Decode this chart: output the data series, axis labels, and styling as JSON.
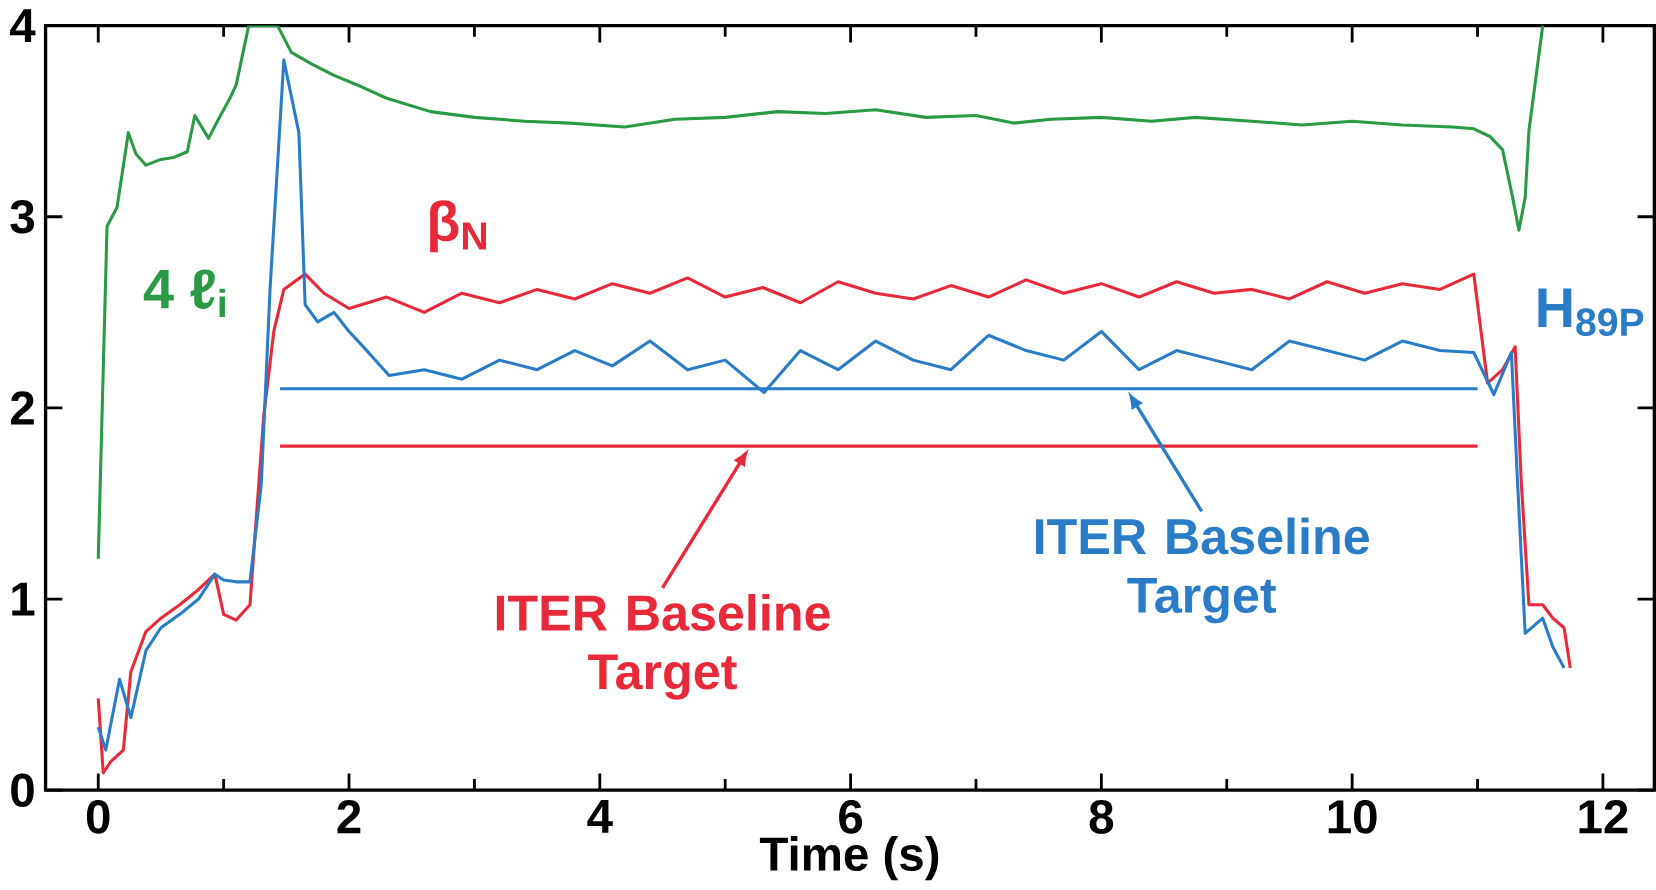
{
  "chart_data": {
    "type": "line",
    "xlabel": "Time (s)",
    "xlim": [
      -0.42,
      12.41
    ],
    "ylim": [
      0,
      4
    ],
    "xticks": [
      0,
      2,
      4,
      6,
      8,
      10,
      12
    ],
    "yticks": [
      0,
      1,
      2,
      3,
      4
    ],
    "grid": false,
    "legend": false,
    "marker": "none",
    "line_style": "solid",
    "series": [
      {
        "name": "4 ℓ$_{i}$",
        "color": "#2a9a45",
        "x": [
          0,
          0.07,
          0.15,
          0.24,
          0.3,
          0.38,
          0.5,
          0.6,
          0.71,
          0.77,
          0.88,
          0.95,
          1.05,
          1.1,
          1.2,
          1.3,
          1.43,
          1.54,
          1.7,
          1.88,
          2.1,
          2.3,
          2.65,
          3.0,
          3.4,
          3.76,
          4.2,
          4.6,
          5.0,
          5.42,
          5.8,
          6.2,
          6.6,
          7.0,
          7.3,
          7.6,
          8.0,
          8.4,
          8.75,
          9.2,
          9.6,
          10.0,
          10.4,
          10.8,
          10.97,
          11.1,
          11.2,
          11.28,
          11.33,
          11.38,
          11.41,
          11.52
        ],
        "values": [
          1.21,
          2.95,
          3.05,
          3.44,
          3.33,
          3.27,
          3.3,
          3.31,
          3.34,
          3.53,
          3.41,
          3.5,
          3.62,
          3.69,
          4.0,
          4.0,
          4.0,
          3.86,
          3.8,
          3.74,
          3.68,
          3.62,
          3.55,
          3.52,
          3.5,
          3.49,
          3.47,
          3.51,
          3.52,
          3.55,
          3.54,
          3.56,
          3.52,
          3.53,
          3.49,
          3.51,
          3.52,
          3.5,
          3.52,
          3.5,
          3.48,
          3.5,
          3.48,
          3.47,
          3.46,
          3.42,
          3.35,
          3.1,
          2.93,
          3.1,
          3.45,
          4.0
        ]
      },
      {
        "name": "β$_{N}$",
        "color": "#e8293a",
        "x": [
          0,
          0.04,
          0.1,
          0.2,
          0.26,
          0.38,
          0.5,
          0.65,
          0.8,
          0.93,
          1.0,
          1.1,
          1.21,
          1.32,
          1.4,
          1.48,
          1.65,
          1.8,
          2.0,
          2.1,
          2.3,
          2.6,
          2.9,
          3.2,
          3.5,
          3.8,
          4.1,
          4.4,
          4.7,
          5.0,
          5.3,
          5.6,
          5.9,
          6.2,
          6.5,
          6.8,
          7.1,
          7.4,
          7.7,
          8.0,
          8.3,
          8.6,
          8.9,
          9.2,
          9.5,
          9.8,
          10.1,
          10.4,
          10.7,
          10.97,
          11.08,
          11.2,
          11.3,
          11.35,
          11.41,
          11.52,
          11.6,
          11.69,
          11.74
        ],
        "values": [
          0.48,
          0.09,
          0.15,
          0.21,
          0.62,
          0.83,
          0.9,
          0.97,
          1.05,
          1.13,
          0.92,
          0.89,
          0.97,
          1.96,
          2.4,
          2.62,
          2.7,
          2.6,
          2.52,
          2.54,
          2.58,
          2.5,
          2.6,
          2.55,
          2.62,
          2.57,
          2.65,
          2.6,
          2.68,
          2.58,
          2.63,
          2.55,
          2.66,
          2.6,
          2.57,
          2.64,
          2.58,
          2.67,
          2.6,
          2.65,
          2.58,
          2.66,
          2.6,
          2.62,
          2.57,
          2.66,
          2.6,
          2.65,
          2.62,
          2.7,
          2.13,
          2.2,
          2.32,
          1.6,
          0.97,
          0.97,
          0.9,
          0.85,
          0.64
        ]
      },
      {
        "name": "H$_{89P}$",
        "color": "#2a7cc7",
        "x": [
          0,
          0.06,
          0.17,
          0.26,
          0.38,
          0.5,
          0.65,
          0.8,
          0.93,
          1.0,
          1.1,
          1.21,
          1.3,
          1.37,
          1.48,
          1.6,
          1.65,
          1.75,
          1.88,
          2.0,
          2.1,
          2.32,
          2.6,
          2.9,
          3.2,
          3.5,
          3.8,
          4.1,
          4.4,
          4.7,
          5.0,
          5.31,
          5.6,
          5.9,
          6.2,
          6.5,
          6.8,
          7.1,
          7.4,
          7.7,
          8.0,
          8.3,
          8.6,
          8.9,
          9.2,
          9.5,
          9.8,
          10.1,
          10.4,
          10.7,
          10.97,
          11.13,
          11.27,
          11.32,
          11.38,
          11.52,
          11.6,
          11.69
        ],
        "values": [
          0.33,
          0.21,
          0.58,
          0.38,
          0.73,
          0.85,
          0.92,
          1.0,
          1.13,
          1.1,
          1.09,
          1.09,
          1.6,
          2.62,
          3.82,
          3.44,
          2.54,
          2.45,
          2.5,
          2.4,
          2.33,
          2.17,
          2.2,
          2.15,
          2.25,
          2.2,
          2.3,
          2.22,
          2.35,
          2.2,
          2.25,
          2.08,
          2.3,
          2.2,
          2.35,
          2.25,
          2.2,
          2.38,
          2.3,
          2.25,
          2.4,
          2.2,
          2.3,
          2.25,
          2.2,
          2.35,
          2.3,
          2.25,
          2.35,
          2.3,
          2.29,
          2.07,
          2.29,
          1.6,
          0.82,
          0.9,
          0.75,
          0.64
        ]
      },
      {
        "color": "#2a7cc7",
        "x": [
          1.45,
          11.0
        ],
        "values": [
          2.1,
          2.1
        ]
      },
      {
        "color": "#e8293a",
        "x": [
          1.45,
          11.0
        ],
        "values": [
          1.8,
          1.8
        ]
      }
    ],
    "annotations": [
      {
        "text": "ITER Baseline Target",
        "x": 5.2,
        "y": 1.8
      },
      {
        "text": "ITER Baseline Target",
        "x": 8.2,
        "y": 2.1
      }
    ]
  }
}
